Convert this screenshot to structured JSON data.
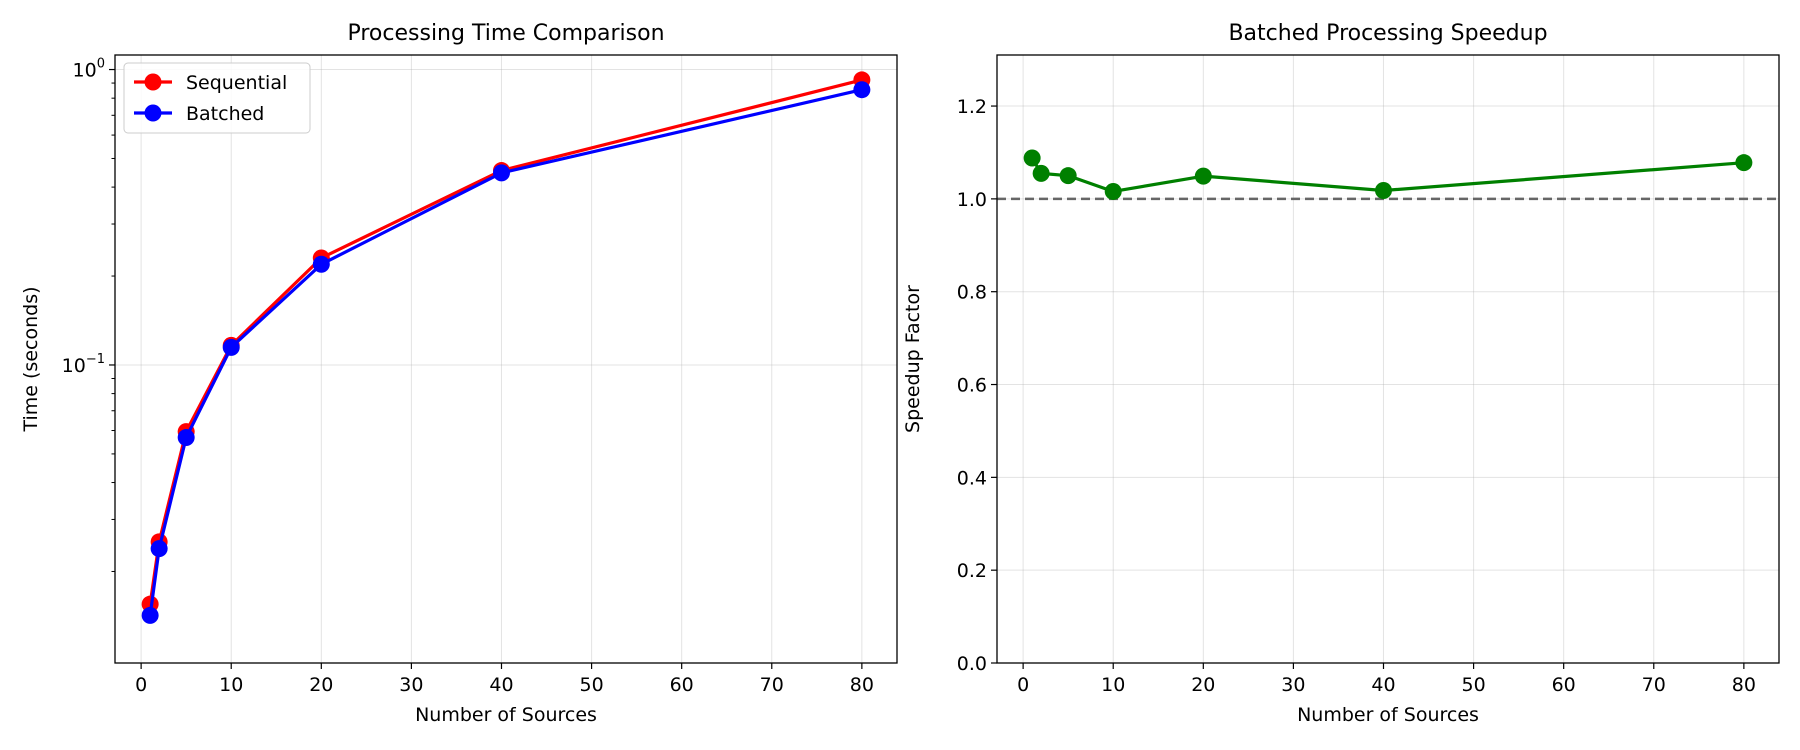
{
  "chart_data": [
    {
      "type": "line",
      "title": "Processing Time Comparison",
      "xlabel": "Number of Sources",
      "ylabel": "Time (seconds)",
      "yscale": "log",
      "xlim": [
        -2.9,
        83.9
      ],
      "ylim": [
        0.0098,
        1.12
      ],
      "x_ticks": [
        0,
        10,
        20,
        30,
        40,
        50,
        60,
        70,
        80
      ],
      "y_ticks": [
        {
          "value": 0.1,
          "base": "10",
          "exp": "−1"
        },
        {
          "value": 1,
          "base": "10",
          "exp": "0"
        }
      ],
      "grid": true,
      "legend_position": "upper-left",
      "series": [
        {
          "name": "Sequential",
          "color": "#ff0000",
          "x": [
            1,
            2,
            5,
            10,
            20,
            40,
            80
          ],
          "y": [
            0.0155,
            0.0252,
            0.0595,
            0.1165,
            0.2302,
            0.4551,
            0.9222
          ]
        },
        {
          "name": "Batched",
          "color": "#0000ff",
          "x": [
            1,
            2,
            5,
            10,
            20,
            40,
            80
          ],
          "y": [
            0.0142,
            0.0239,
            0.0568,
            0.1147,
            0.2192,
            0.4468,
            0.8546
          ]
        }
      ]
    },
    {
      "type": "line",
      "title": "Batched Processing Speedup",
      "xlabel": "Number of Sources",
      "ylabel": "Speedup Factor",
      "xlim": [
        -2.9,
        83.9
      ],
      "ylim": [
        0,
        1.31
      ],
      "x_ticks": [
        0,
        10,
        20,
        30,
        40,
        50,
        60,
        70,
        80
      ],
      "y_ticks": [
        0.0,
        0.2,
        0.4,
        0.6,
        0.8,
        1.0,
        1.2
      ],
      "grid": true,
      "reference_line": {
        "y": 1.0,
        "style": "dashed",
        "color": "#666666"
      },
      "series": [
        {
          "color": "#008000",
          "x": [
            1,
            2,
            5,
            10,
            20,
            40,
            80
          ],
          "y": [
            1.088,
            1.055,
            1.05,
            1.016,
            1.049,
            1.018,
            1.078
          ]
        }
      ]
    }
  ]
}
